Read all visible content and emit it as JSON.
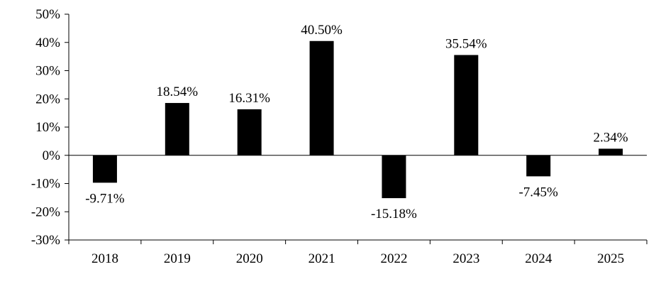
{
  "chart_data": {
    "type": "bar",
    "title": "",
    "xlabel": "",
    "ylabel": "",
    "categories": [
      "2018",
      "2019",
      "2020",
      "2021",
      "2022",
      "2023",
      "2024",
      "2025"
    ],
    "values": [
      -9.71,
      18.54,
      16.31,
      40.5,
      -15.18,
      35.54,
      -7.45,
      2.34
    ],
    "data_labels": [
      "-9.71%",
      "18.54%",
      "16.31%",
      "40.50%",
      "-15.18%",
      "35.54%",
      "-7.45%",
      "2.34%"
    ],
    "ylim": [
      -30,
      50
    ],
    "y_ticks": [
      50,
      40,
      30,
      20,
      10,
      0,
      -10,
      -20,
      -30
    ],
    "y_tick_labels": [
      "50%",
      "40%",
      "30%",
      "20%",
      "10%",
      "0%",
      "-10%",
      "-20%",
      "-30%"
    ],
    "grid": false,
    "legend": "none",
    "bar_color": "#000000"
  }
}
